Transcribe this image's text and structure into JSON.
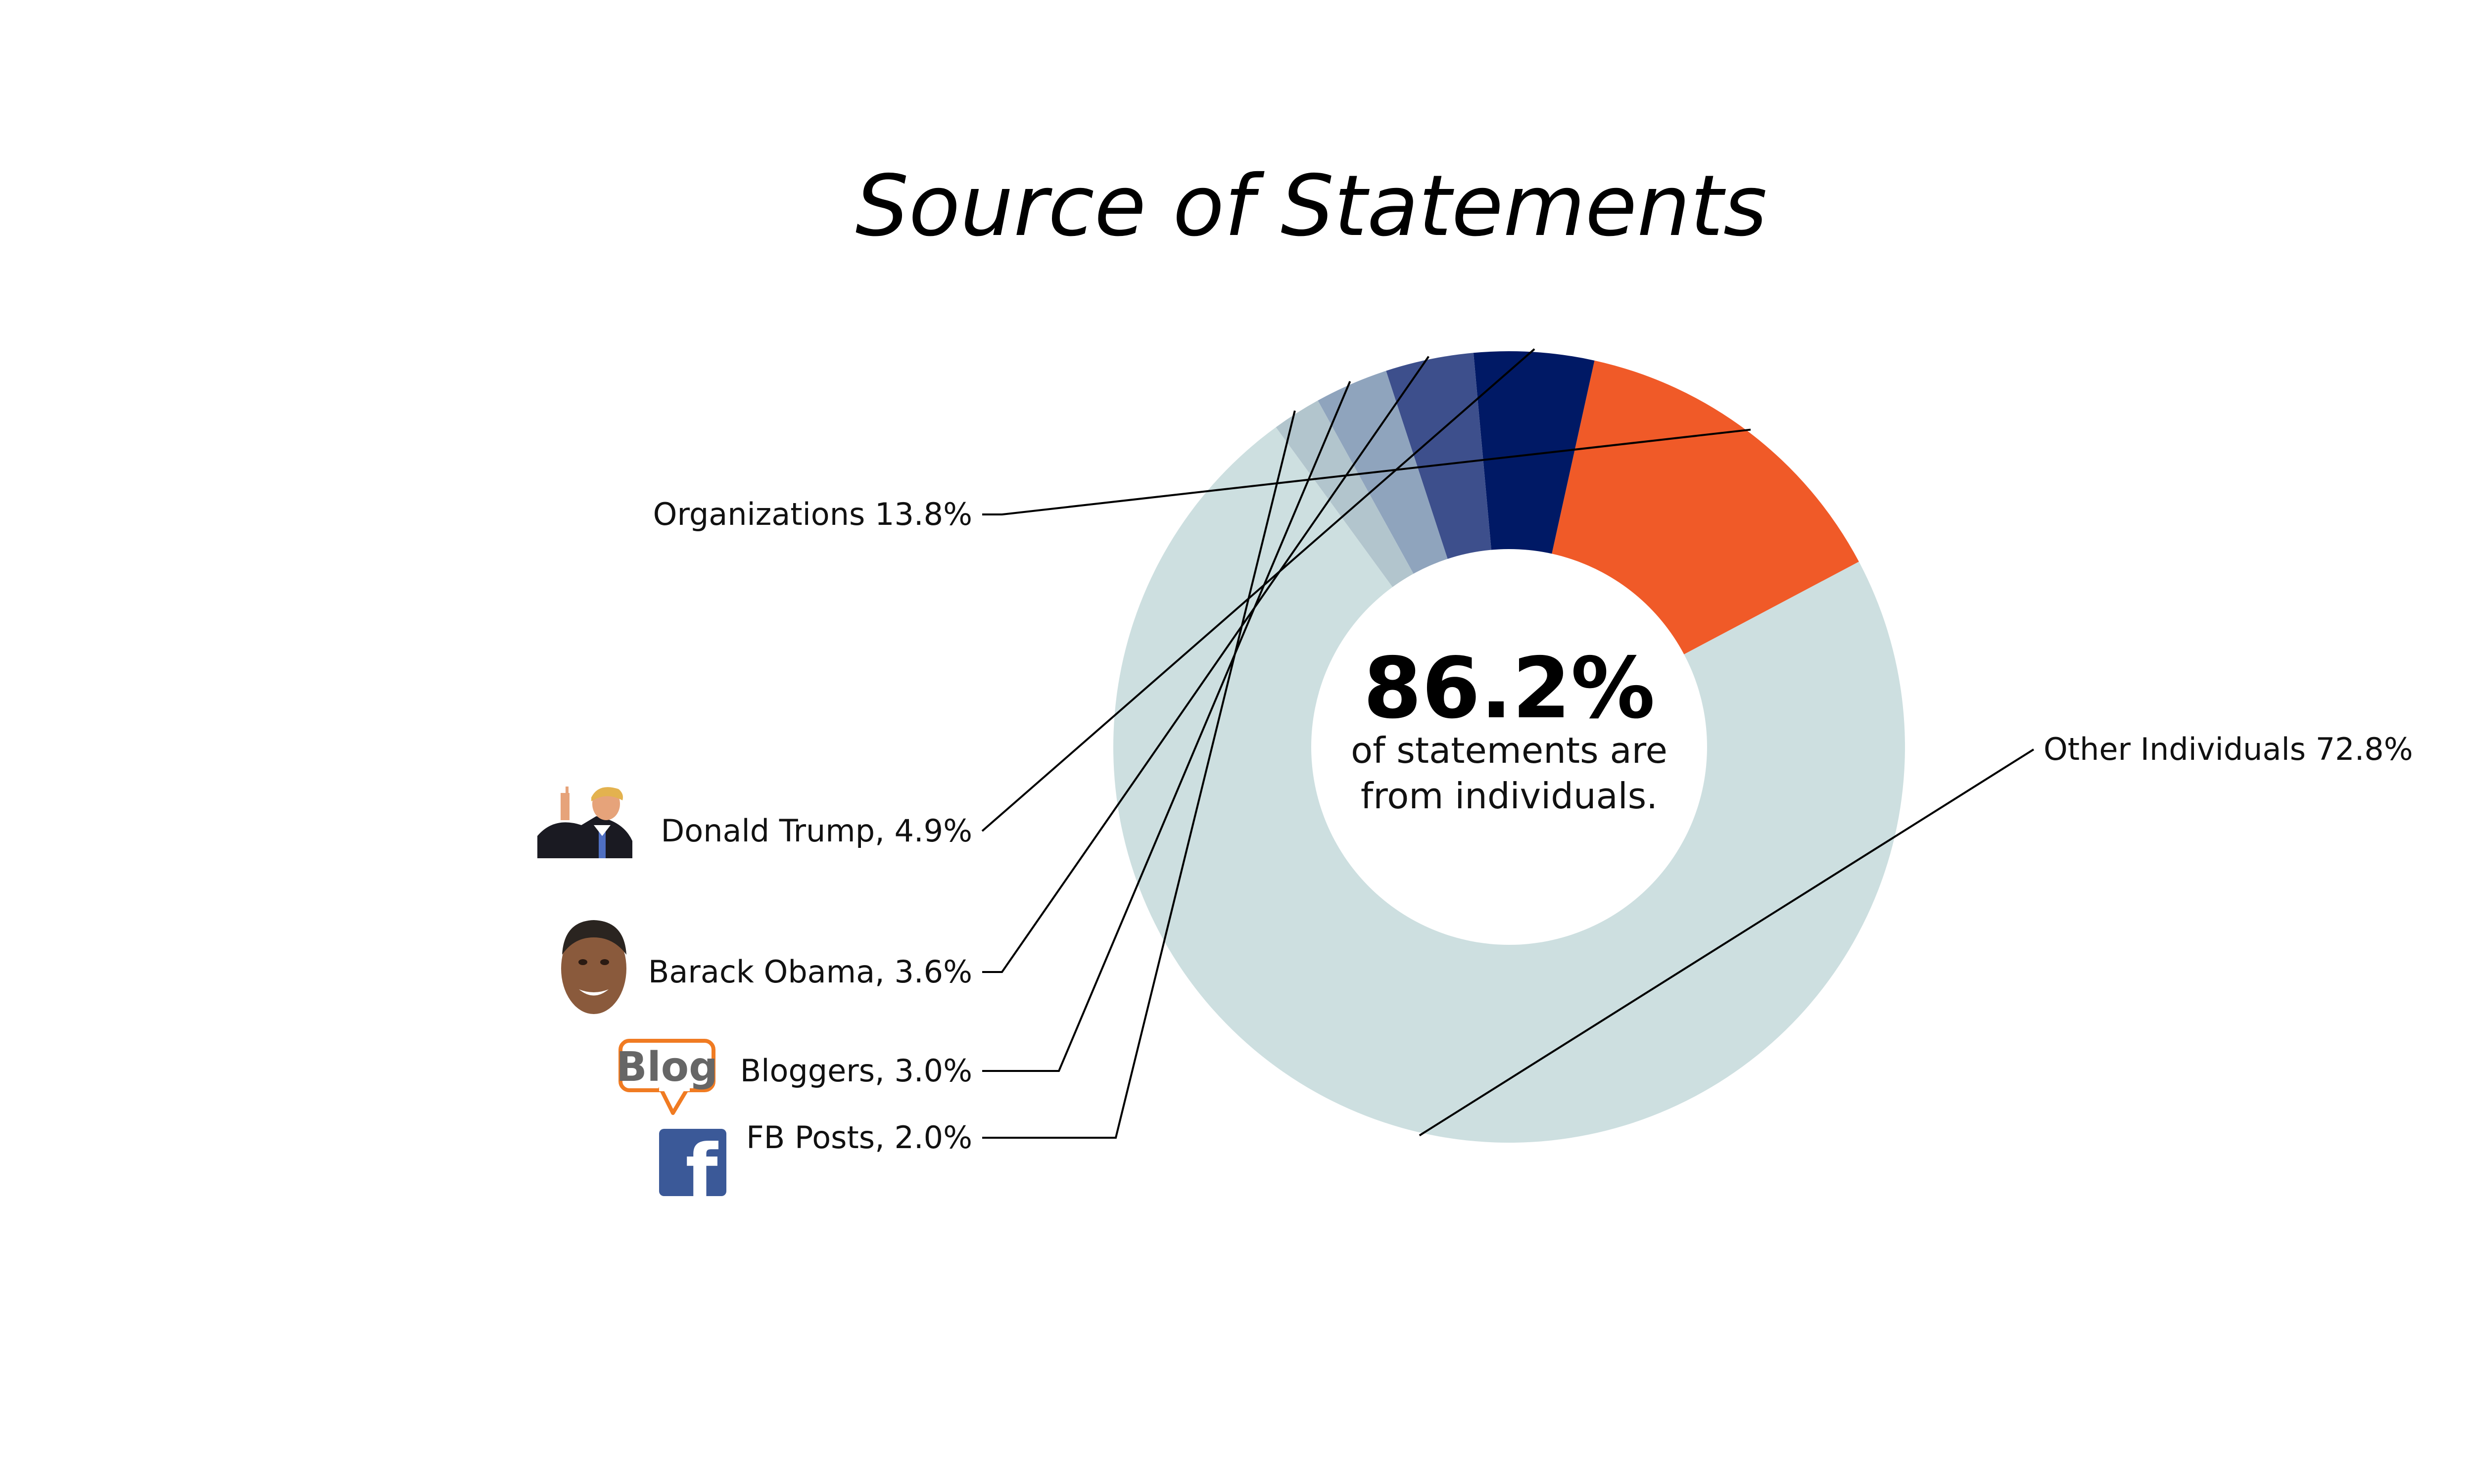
{
  "chart_data": {
    "type": "pie",
    "title": "Source of Statements",
    "center": {
      "value": "86.2%",
      "line1": "of statements are",
      "line2": "from individuals."
    },
    "slices": [
      {
        "name": "Other Individuals",
        "value": 72.8,
        "label": "Other Individuals 72.8%",
        "color": "#cddfe0",
        "icon": ""
      },
      {
        "name": "Organizations",
        "value": 13.8,
        "label": "Organizations 13.8%",
        "color": "#f05a28",
        "icon": ""
      },
      {
        "name": "Donald Trump",
        "value": 4.9,
        "label": "Donald Trump, 4.9%",
        "color": "#001965",
        "icon": "trump-photo-icon"
      },
      {
        "name": "Barack Obama",
        "value": 3.6,
        "label": "Barack Obama, 3.6%",
        "color": "#3d4f8c",
        "icon": "obama-photo-icon"
      },
      {
        "name": "Bloggers",
        "value": 3.0,
        "label": "Bloggers, 3.0%",
        "color": "#8fa4bd",
        "icon": "blog-icon"
      },
      {
        "name": "FB Posts",
        "value": 2.0,
        "label": "FB Posts, 2.0%",
        "color": "#b2c5cd",
        "icon": "facebook-icon"
      }
    ],
    "icons": {
      "blog_text": "Blog",
      "facebook_text": "f"
    }
  }
}
